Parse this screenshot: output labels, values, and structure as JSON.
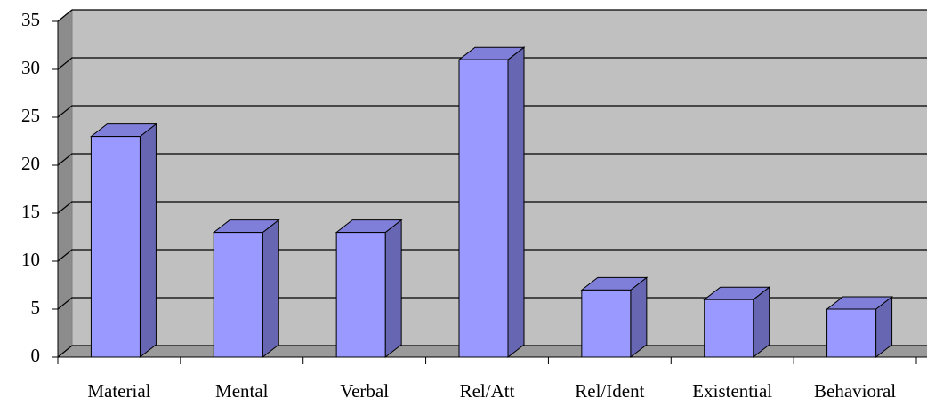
{
  "chart_data": {
    "type": "bar3d",
    "categories": [
      "Material",
      "Mental",
      "Verbal",
      "Rel/Att",
      "Rel/Ident",
      "Existential",
      "Behavioral"
    ],
    "values": [
      23,
      13,
      13,
      31,
      7,
      6,
      5
    ],
    "color": "#9999ff",
    "ylim": [
      0,
      35
    ],
    "yticks": [
      0,
      5,
      10,
      15,
      20,
      25,
      30,
      35
    ],
    "grid": true
  }
}
